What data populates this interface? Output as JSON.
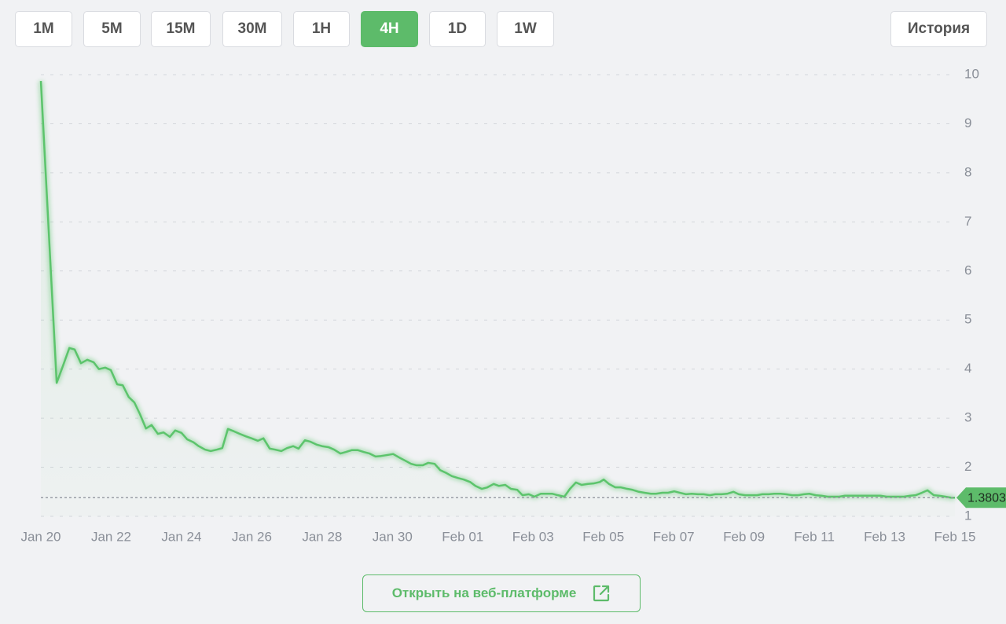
{
  "toolbar": {
    "buttons": [
      "1M",
      "5M",
      "15M",
      "30M",
      "1H",
      "4H",
      "1D",
      "1W"
    ],
    "active": "4H",
    "history": "История"
  },
  "chart_data": {
    "type": "line",
    "color": "#5cc46c",
    "x": [
      0,
      0.45,
      0.63,
      0.81,
      0.96,
      1.14,
      1.32,
      1.5,
      1.65,
      1.83,
      1.99,
      2.17,
      2.33,
      2.5,
      2.66,
      2.82,
      2.99,
      3.15,
      3.33,
      3.49,
      3.67,
      3.82,
      4.0,
      4.16,
      4.34,
      4.49,
      4.67,
      4.83,
      5.01,
      5.16,
      5.32,
      5.5,
      5.66,
      5.83,
      5.99,
      6.17,
      6.33,
      6.51,
      6.66,
      6.84,
      7.0,
      7.18,
      7.33,
      7.51,
      7.67,
      7.85,
      8.0,
      8.18,
      8.34,
      8.52,
      8.67,
      8.85,
      9.01,
      9.19,
      9.35,
      9.52,
      9.68,
      9.86,
      10.02,
      10.19,
      10.35,
      10.53,
      10.69,
      10.86,
      11.02,
      11.2,
      11.36,
      11.54,
      11.69,
      11.87,
      12.03,
      12.21,
      12.36,
      12.54,
      12.7,
      12.88,
      13.03,
      13.21,
      13.37,
      13.55,
      13.7,
      13.88,
      14.04,
      14.22,
      14.37,
      14.55,
      14.71,
      14.89,
      15.05,
      15.22,
      15.38,
      15.56,
      15.72,
      15.9,
      16.01,
      16.16,
      16.34,
      16.5,
      16.68,
      16.83,
      17.01,
      17.17,
      17.35,
      17.5,
      17.68,
      17.84,
      18.02,
      18.18,
      18.35,
      18.51,
      18.69,
      18.85,
      19.03,
      19.18,
      19.36,
      19.52,
      19.7,
      19.85,
      20.03,
      20.19,
      20.37,
      20.52,
      20.7,
      20.86,
      21.04,
      21.19,
      21.37,
      21.53,
      21.71,
      21.86,
      22.04,
      22.2,
      22.38,
      22.54,
      22.71,
      22.87,
      23.05,
      23.21,
      23.38,
      23.54,
      23.72,
      23.88,
      24.06,
      24.21,
      24.39,
      24.55,
      24.73,
      24.88,
      25.06,
      25.22,
      25.4,
      25.55,
      25.73,
      25.89,
      26.0
    ],
    "values": [
      9.87,
      3.72,
      4.07,
      4.43,
      4.4,
      4.12,
      4.19,
      4.14,
      4.0,
      4.03,
      3.98,
      3.69,
      3.67,
      3.43,
      3.32,
      3.08,
      2.79,
      2.86,
      2.68,
      2.71,
      2.62,
      2.75,
      2.7,
      2.57,
      2.51,
      2.43,
      2.36,
      2.33,
      2.36,
      2.39,
      2.78,
      2.73,
      2.68,
      2.63,
      2.59,
      2.54,
      2.59,
      2.38,
      2.36,
      2.33,
      2.39,
      2.43,
      2.38,
      2.55,
      2.52,
      2.46,
      2.43,
      2.41,
      2.36,
      2.28,
      2.31,
      2.35,
      2.35,
      2.31,
      2.28,
      2.22,
      2.23,
      2.25,
      2.27,
      2.2,
      2.14,
      2.07,
      2.04,
      2.04,
      2.09,
      2.07,
      1.94,
      1.88,
      1.82,
      1.78,
      1.75,
      1.7,
      1.62,
      1.56,
      1.59,
      1.66,
      1.62,
      1.64,
      1.56,
      1.54,
      1.43,
      1.45,
      1.4,
      1.46,
      1.46,
      1.46,
      1.43,
      1.4,
      1.56,
      1.69,
      1.64,
      1.66,
      1.67,
      1.7,
      1.75,
      1.66,
      1.59,
      1.59,
      1.56,
      1.54,
      1.5,
      1.48,
      1.46,
      1.46,
      1.48,
      1.48,
      1.51,
      1.48,
      1.45,
      1.46,
      1.45,
      1.45,
      1.43,
      1.45,
      1.45,
      1.46,
      1.5,
      1.45,
      1.43,
      1.43,
      1.43,
      1.45,
      1.45,
      1.46,
      1.46,
      1.45,
      1.43,
      1.43,
      1.45,
      1.46,
      1.43,
      1.42,
      1.4,
      1.4,
      1.4,
      1.42,
      1.42,
      1.42,
      1.42,
      1.42,
      1.42,
      1.42,
      1.4,
      1.4,
      1.4,
      1.4,
      1.42,
      1.43,
      1.48,
      1.53,
      1.43,
      1.42,
      1.4,
      1.38,
      1.38
    ],
    "xlim": [
      0,
      26
    ],
    "xticks": [
      {
        "value": 0,
        "label": "Jan 20"
      },
      {
        "value": 2,
        "label": "Jan 22"
      },
      {
        "value": 4,
        "label": "Jan 24"
      },
      {
        "value": 6,
        "label": "Jan 26"
      },
      {
        "value": 8,
        "label": "Jan 28"
      },
      {
        "value": 10,
        "label": "Jan 30"
      },
      {
        "value": 12,
        "label": "Feb 01"
      },
      {
        "value": 14,
        "label": "Feb 03"
      },
      {
        "value": 16,
        "label": "Feb 05"
      },
      {
        "value": 18,
        "label": "Feb 07"
      },
      {
        "value": 20,
        "label": "Feb 09"
      },
      {
        "value": 22,
        "label": "Feb 11"
      },
      {
        "value": 24,
        "label": "Feb 13"
      },
      {
        "value": 26,
        "label": "Feb 15"
      }
    ],
    "ylim": [
      1,
      10
    ],
    "yticks": [
      1,
      2,
      3,
      4,
      5,
      6,
      7,
      8,
      9,
      10
    ],
    "grid": true,
    "last_price": 1.3803
  },
  "footer": {
    "open_button": "Открыть на веб-платформе"
  }
}
